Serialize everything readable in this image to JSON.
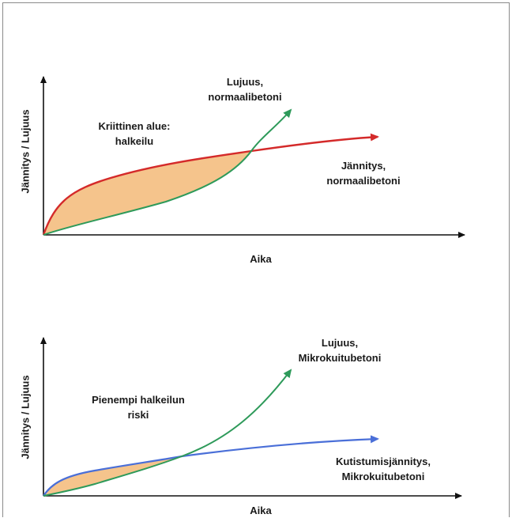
{
  "top": {
    "y_axis": "Jännitys / Lujuus",
    "x_axis": "Aika",
    "region": [
      "Kriittinen alue:",
      "halkeilu"
    ],
    "strength": [
      "Lujuus,",
      "normaalibetoni"
    ],
    "stress": [
      "Jännitys,",
      "normaalibetoni"
    ]
  },
  "bottom": {
    "y_axis": "Jännitys / Lujuus",
    "x_axis": "Aika",
    "region": [
      "Pienempi halkeilun",
      "riski"
    ],
    "strength": [
      "Lujuus,",
      "Mikrokuitubetoni"
    ],
    "stress": [
      "Kutistumisjännitys,",
      "Mikrokuitubetoni"
    ]
  },
  "colors": {
    "red_curve": "#d42a2a",
    "green_curve": "#2e9a5a",
    "blue_curve": "#4a6fd8",
    "fill": "#f5c48c"
  }
}
